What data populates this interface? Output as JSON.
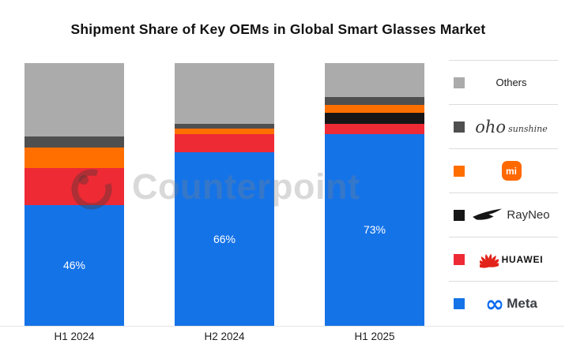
{
  "title": "Shipment Share of Key OEMs in Global Smart Glasses Market",
  "watermark": {
    "text": "Counterpoint",
    "icon": "counterpoint-lens-icon"
  },
  "chart_data": {
    "type": "bar",
    "stacked": true,
    "unit": "%",
    "title": "Shipment Share of Key OEMs in Global Smart Glasses Market",
    "categories": [
      "H1 2024",
      "H2 2024",
      "H1 2025"
    ],
    "series": [
      {
        "name": "Meta",
        "color": "#1573e8",
        "values": [
          46,
          66,
          73
        ],
        "data_labels": [
          "46%",
          "66%",
          "73%"
        ]
      },
      {
        "name": "HUAWEI",
        "color": "#ee2a35",
        "values": [
          14,
          7,
          4
        ]
      },
      {
        "name": "RayNeo",
        "color": "#161616",
        "values": [
          0,
          0,
          4
        ]
      },
      {
        "name": "Xiaomi",
        "color": "#ff6f00",
        "values": [
          8,
          2,
          3
        ]
      },
      {
        "name": "oho sunshine",
        "color": "#4f4f4f",
        "values": [
          4,
          2,
          3
        ]
      },
      {
        "name": "Others",
        "color": "#ababab",
        "values": [
          28,
          23,
          13
        ]
      }
    ],
    "ylim": [
      0,
      100
    ],
    "grid": false,
    "legend_position": "right",
    "note": "Only Meta segments carry data labels"
  },
  "legend": {
    "items": [
      {
        "label": "Others",
        "color": "#ababab"
      },
      {
        "label": "oho sunshine",
        "color": "#4f4f4f",
        "logo_main": "oho",
        "logo_sub": "sunshine"
      },
      {
        "label": "Xiaomi",
        "color": "#ff6f00",
        "logo_text": "mi"
      },
      {
        "label": "RayNeo",
        "color": "#161616",
        "logo_text": "RayNeo"
      },
      {
        "label": "HUAWEI",
        "color": "#ee2a35",
        "logo_text": "HUAWEI"
      },
      {
        "label": "Meta",
        "color": "#1573e8",
        "logo_text": "Meta",
        "logo_glyph": "∞"
      }
    ]
  }
}
